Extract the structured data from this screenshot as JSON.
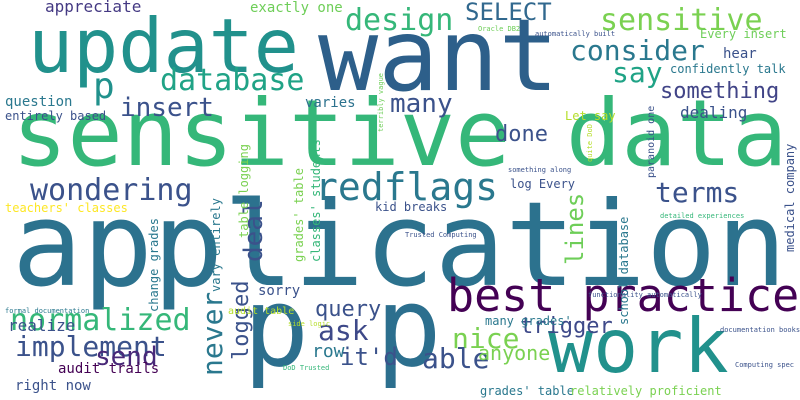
{
  "words": [
    "sensitive data",
    "application",
    "want",
    "update",
    "p p",
    "work",
    "best practice",
    "design",
    "SELECT",
    "sensitive",
    "consider",
    "say",
    "p",
    "database",
    "appreciate",
    "exactly one",
    "insert",
    "question",
    "entirely based",
    "many",
    "varies",
    "done",
    "something",
    "terms",
    "wondering",
    "redflags",
    "deal",
    "lines",
    "never",
    "logged",
    "normalized",
    "implement",
    "send",
    "ask",
    "query",
    "nice",
    "trigger",
    "row",
    "it'd",
    "able",
    "anyone",
    "realize",
    "sorry",
    "kid breaks",
    "log Every",
    "dealing",
    "hear",
    "confidently talk",
    "Every insert",
    "Let say",
    "Oracle DB2",
    "automatically built",
    "paranoid one",
    "school database",
    "medical company",
    "quite DoD",
    "teachers' classes",
    "change grades",
    "vary entirely",
    "table logging",
    "grades' table",
    "classes' students'",
    "audit table",
    "side logic",
    "many grades'",
    "audit trails",
    "right now",
    "grades' table",
    "relatively proficient",
    "formal documentation",
    "DoD Trusted",
    "Trusted Computing",
    "functionality automatically",
    "documentation books",
    "Computing spec",
    "something along",
    "detailed experiences",
    "terribly vague"
  ]
}
